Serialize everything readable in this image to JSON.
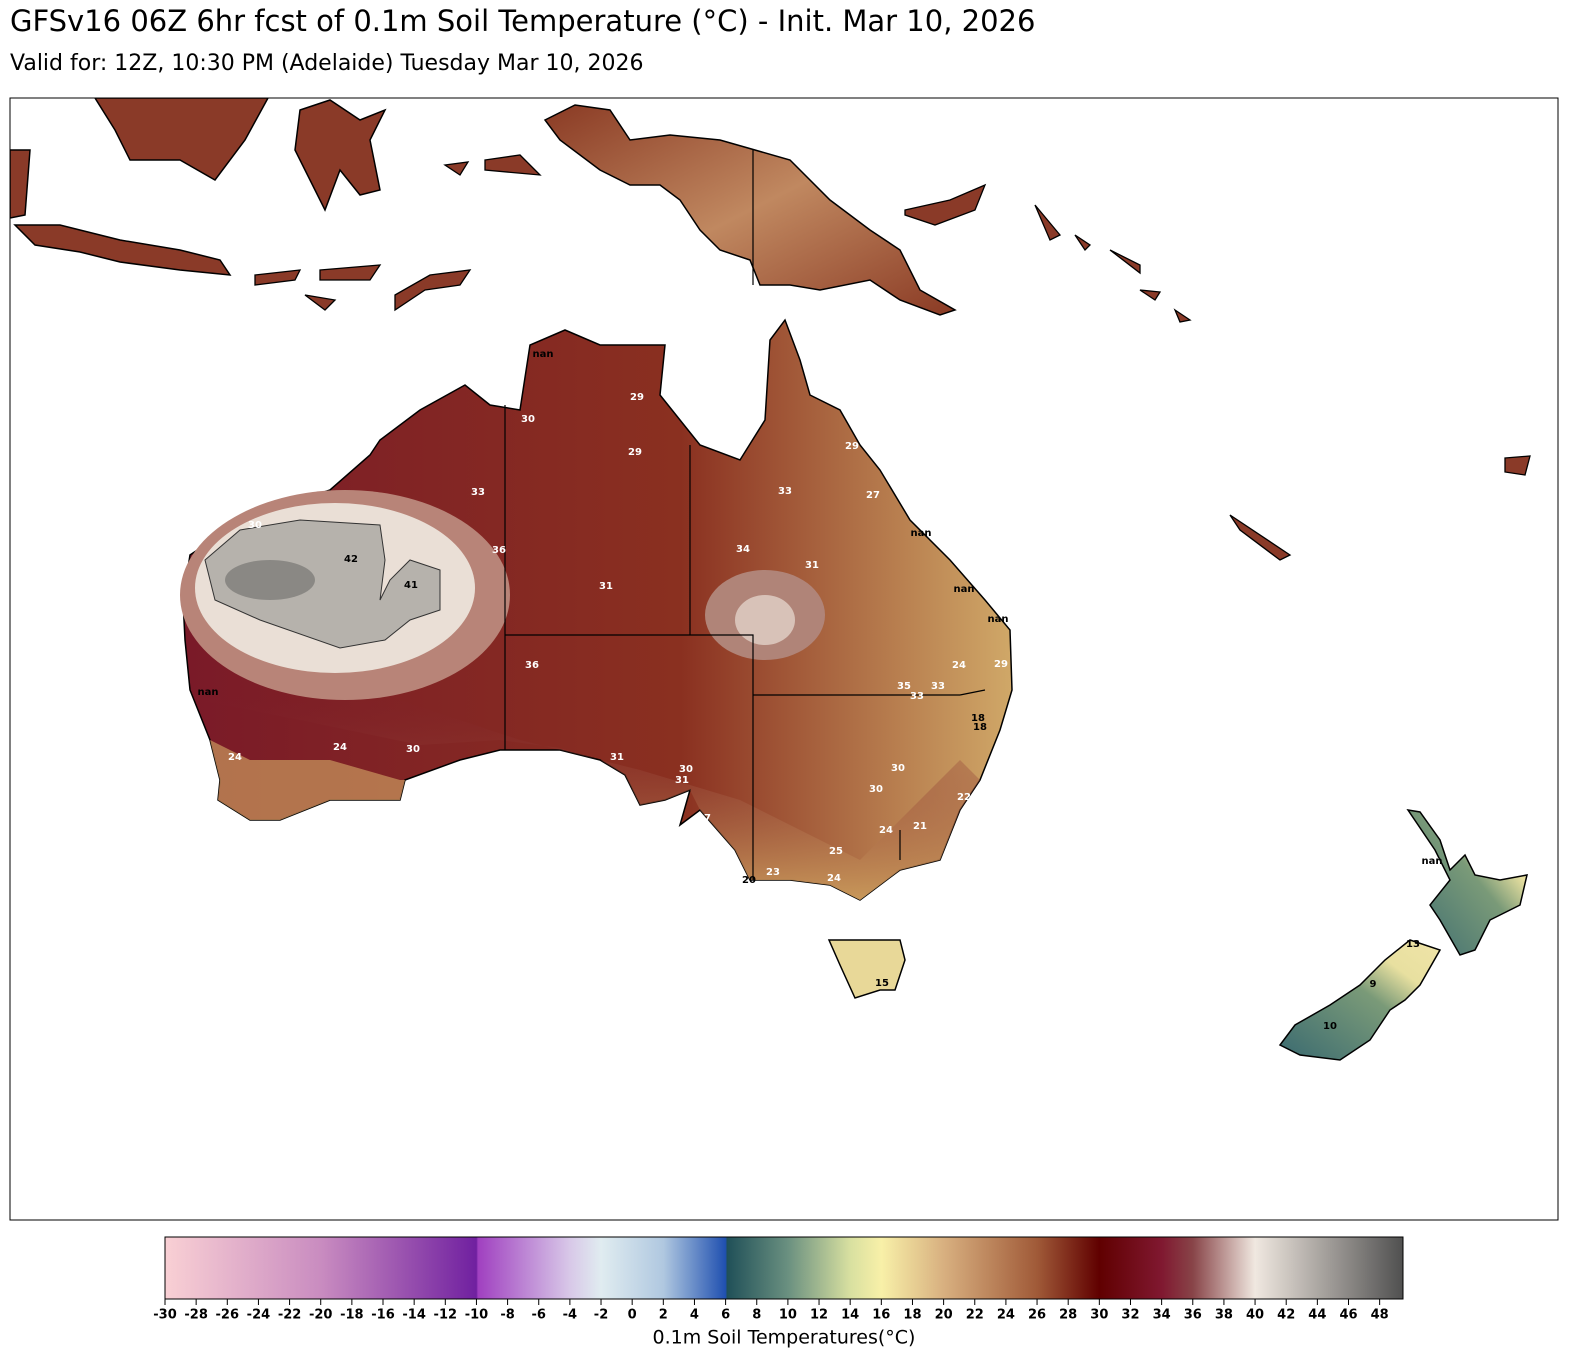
{
  "title": "GFSv16 06Z 6hr fcst of 0.1m Soil Temperature (°C) - Init. Mar 10, 2026",
  "subtitle": "Valid for: 12Z, 10:30 PM (Adelaide) Tuesday Mar 10, 2026",
  "map_labels": [
    "nan",
    29,
    30,
    29,
    29,
    33,
    33,
    27,
    30,
    "nan",
    36,
    34,
    42,
    31,
    41,
    31,
    "nan",
    "nan",
    36,
    24,
    29,
    35,
    33,
    "nan",
    33,
    18,
    18,
    24,
    30,
    24,
    31,
    30,
    30,
    31,
    30,
    22,
    25,
    27,
    24,
    21,
    25,
    23,
    20,
    24,
    "nan",
    15,
    13,
    9,
    10
  ],
  "colorbar": {
    "label": "0.1m Soil Temperatures(°C)",
    "clim": [
      -30,
      49.5
    ],
    "ticks": [
      -30,
      -28,
      -26,
      -24,
      -22,
      -20,
      -18,
      -16,
      -14,
      -12,
      -10,
      -8,
      -6,
      -4,
      -2,
      0,
      2,
      4,
      6,
      8,
      10,
      12,
      14,
      16,
      18,
      20,
      22,
      24,
      26,
      28,
      30,
      32,
      34,
      36,
      38,
      40,
      42,
      44,
      46,
      48
    ],
    "stops": [
      {
        "value": -30,
        "color": "#f9d0d4"
      },
      {
        "value": -20,
        "color": "#c98cc0"
      },
      {
        "value": -10,
        "color": "#7020a0"
      },
      {
        "value": -9.9,
        "color": "#a040c0"
      },
      {
        "value": -4,
        "color": "#d8c8e8"
      },
      {
        "value": -2,
        "color": "#e0ecf0"
      },
      {
        "value": 2,
        "color": "#b0c8e0"
      },
      {
        "value": 6,
        "color": "#2050b0"
      },
      {
        "value": 6.1,
        "color": "#205058"
      },
      {
        "value": 10,
        "color": "#6a9080"
      },
      {
        "value": 14,
        "color": "#d8e0a0"
      },
      {
        "value": 16,
        "color": "#f8f0a8"
      },
      {
        "value": 20,
        "color": "#d8b080"
      },
      {
        "value": 26,
        "color": "#a05a38"
      },
      {
        "value": 30,
        "color": "#600000"
      },
      {
        "value": 34,
        "color": "#801830"
      },
      {
        "value": 36,
        "color": "#884448"
      },
      {
        "value": 40,
        "color": "#f0e8e0"
      },
      {
        "value": 49.5,
        "color": "#505050"
      }
    ]
  }
}
